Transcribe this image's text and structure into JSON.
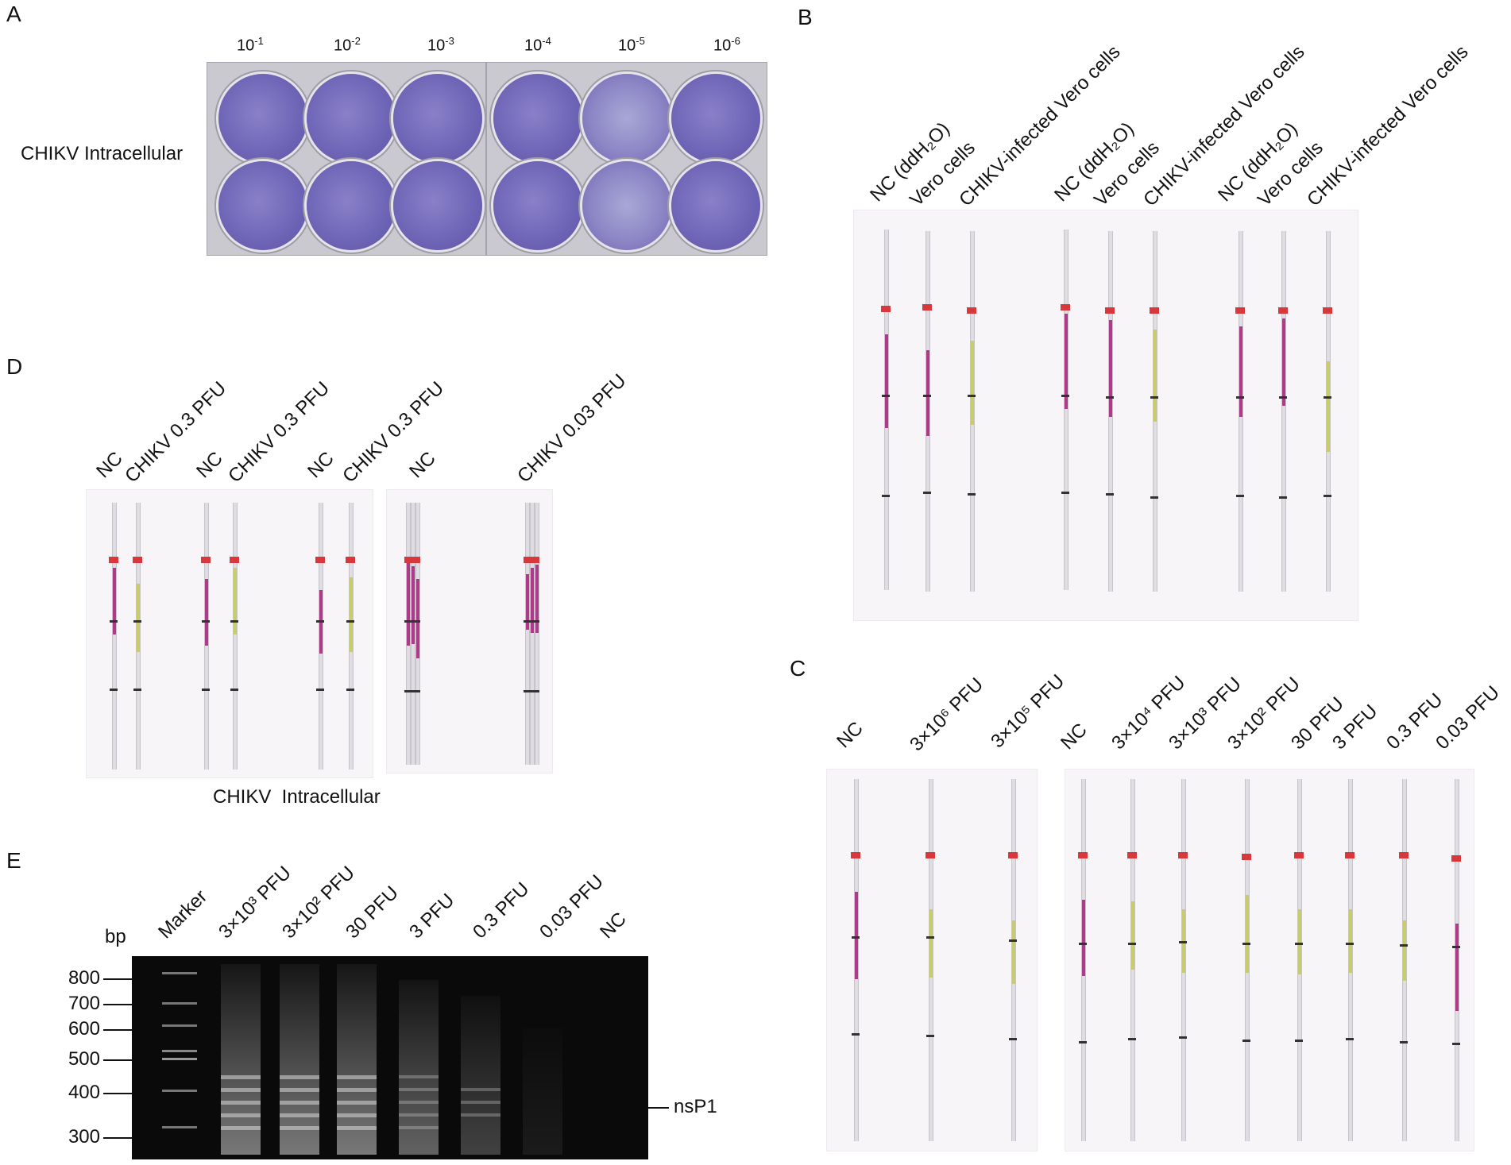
{
  "panel_A": {
    "letter": "A",
    "row_label": "CHIKV Intracellular",
    "dilutions": [
      {
        "base": "10",
        "exp": "-1"
      },
      {
        "base": "10",
        "exp": "-2"
      },
      {
        "base": "10",
        "exp": "-3"
      },
      {
        "base": "10",
        "exp": "-4"
      },
      {
        "base": "10",
        "exp": "-5"
      },
      {
        "base": "10",
        "exp": "-6"
      }
    ]
  },
  "panel_B": {
    "letter": "B",
    "lanes": [
      "NC (ddH₂O)",
      "Vero cells",
      "CHIKV-infected Vero cells",
      "NC (ddH₂O)",
      "Vero cells",
      "CHIKV-infected Vero cells",
      "NC (ddH₂O)",
      "Vero cells",
      "CHIKV-infected Vero cells"
    ]
  },
  "panel_C": {
    "letter": "C",
    "lanes_left": [
      "NC",
      "3×10⁶ PFU",
      "3×10⁵ PFU"
    ],
    "lanes_right": [
      "NC",
      "3×10⁴ PFU",
      "3×10³ PFU",
      "3×10² PFU",
      "30 PFU",
      "3 PFU",
      "0.3 PFU",
      "0.03 PFU"
    ]
  },
  "panel_D": {
    "letter": "D",
    "lanes_left": [
      "NC",
      "CHIKV 0.3 PFU",
      "NC",
      "CHIKV 0.3 PFU",
      "NC",
      "CHIKV 0.3 PFU"
    ],
    "lanes_right": [
      "NC",
      "CHIKV 0.03 PFU"
    ],
    "caption": "CHIKV  Intracellular"
  },
  "panel_E": {
    "letter": "E",
    "unit": "bp",
    "lanes": [
      "Marker",
      "3×10³ PFU",
      "3×10² PFU",
      "30 PFU",
      "3 PFU",
      "0.3 PFU",
      "0.03 PFU",
      "NC"
    ],
    "size_markers": [
      "800",
      "700",
      "600",
      "500",
      "400",
      "300"
    ],
    "band_label": "nsP1"
  },
  "colors": {
    "positive": "#b03a8a",
    "negative": "#c9cc6a",
    "cap": "#d8383b",
    "plate_well": "#6d64b6"
  }
}
